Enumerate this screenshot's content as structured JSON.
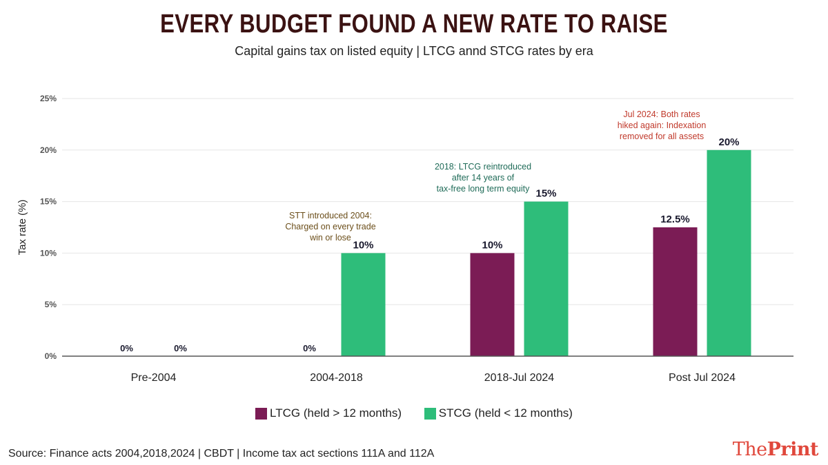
{
  "title": "EVERY BUDGET FOUND A NEW RATE TO RAISE",
  "subtitle": "Capital gains tax on listed equity | LTCG annd STCG rates by era",
  "source": "Source: Finance acts 2004,2018,2024 | CBDT | Income tax act sections 111A and 112A",
  "logo": {
    "the": "The",
    "print": "Print"
  },
  "colors": {
    "ltcg": "#7b1c55",
    "stcg": "#2ebd7a",
    "title": "#3b1212",
    "annotation_2004": "#6b4e1a",
    "annotation_2018": "#1f6b58",
    "annotation_2024": "#c0392b"
  },
  "chart_data": {
    "type": "bar",
    "categories": [
      "Pre-2004",
      "2004-2018",
      "2018-Jul 2024",
      "Post Jul 2024"
    ],
    "series": [
      {
        "name": "LTCG (held > 12 months)",
        "values": [
          0,
          0,
          10,
          12.5
        ],
        "labels": [
          "0%",
          "0%",
          "10%",
          "12.5%"
        ]
      },
      {
        "name": "STCG (held < 12 months)",
        "values": [
          0,
          10,
          15,
          20
        ],
        "labels": [
          "0%",
          "10%",
          "15%",
          "20%"
        ]
      }
    ],
    "ylabel": "Tax rate (%)",
    "ylim": [
      0,
      25
    ],
    "yticks": [
      0,
      5,
      10,
      15,
      20,
      25
    ],
    "ytick_labels": [
      "0%",
      "5%",
      "10%",
      "15%",
      "20%",
      "25%"
    ],
    "grid": true,
    "legend_position": "bottom",
    "annotations": [
      {
        "category": "2004-2018",
        "lines": [
          "STT introduced 2004:",
          "Charged on every trade",
          "win or lose"
        ],
        "color_key": "annotation_2004"
      },
      {
        "category": "2018-Jul 2024",
        "lines": [
          "2018: LTCG reintroduced",
          "after 14 years of",
          "tax-free long term equity"
        ],
        "color_key": "annotation_2018"
      },
      {
        "category": "Post Jul 2024",
        "lines": [
          "Jul 2024: Both rates",
          "hiked again: Indexation",
          "removed for all assets"
        ],
        "color_key": "annotation_2024"
      }
    ]
  }
}
